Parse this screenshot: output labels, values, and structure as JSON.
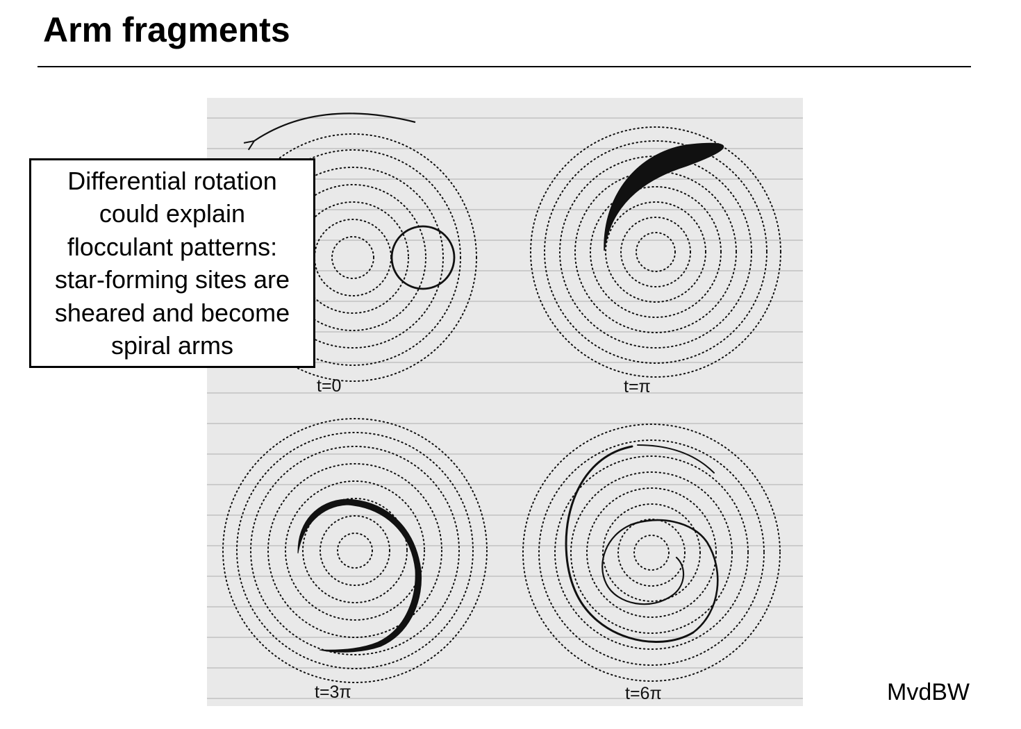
{
  "title": "Arm fragments",
  "callout_lines": [
    "Differential rotation",
    "could explain",
    "flocculant patterns:",
    "star-forming sites are",
    "sheared and become",
    "spiral arms"
  ],
  "credit": "MvdBW",
  "panels": [
    {
      "label": "t=0"
    },
    {
      "label": "t=π"
    },
    {
      "label": "t=3π"
    },
    {
      "label": "t=6π"
    }
  ],
  "colors": {
    "panel_background": "#e9e9e9",
    "text": "#000000"
  }
}
